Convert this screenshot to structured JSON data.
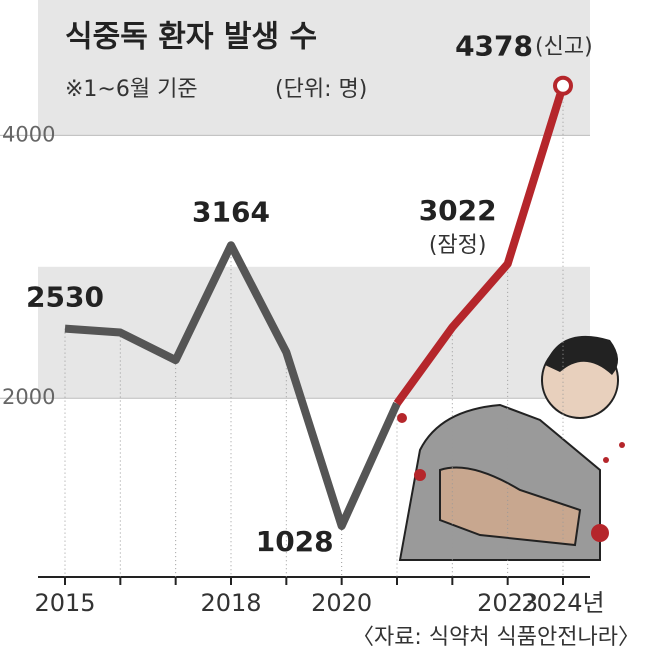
{
  "chart_data": {
    "type": "line",
    "title": "식중독 환자 발생 수",
    "subtitle": "※1~6월 기준",
    "unit_note": "(단위: 명)",
    "source": "〈자료: 식약처 식품안전나라〉",
    "categories": [
      "2015",
      null,
      null,
      "2018",
      null,
      "2020",
      null,
      null,
      "2023",
      "2024년"
    ],
    "series": [
      {
        "color": "#555555",
        "values": [
          2530,
          2500,
          2290,
          3164,
          2350,
          1028,
          1960,
          null,
          null,
          null
        ],
        "value_labels": [
          "2530",
          null,
          null,
          "3164",
          null,
          "1028",
          null,
          null,
          null,
          null
        ]
      },
      {
        "color": "#b5262b",
        "values": [
          null,
          null,
          null,
          null,
          null,
          null,
          1960,
          2540,
          3022,
          4378
        ],
        "value_labels": [
          null,
          null,
          null,
          null,
          null,
          null,
          null,
          null,
          "3022",
          "4378"
        ]
      }
    ],
    "annotations": [
      {
        "index": 8,
        "text": "(잠정)"
      },
      {
        "index": 9,
        "text": "(신고)"
      }
    ],
    "ylim": [
      640,
      5030
    ],
    "yticks": [
      2000,
      4000
    ],
    "grid": true
  }
}
